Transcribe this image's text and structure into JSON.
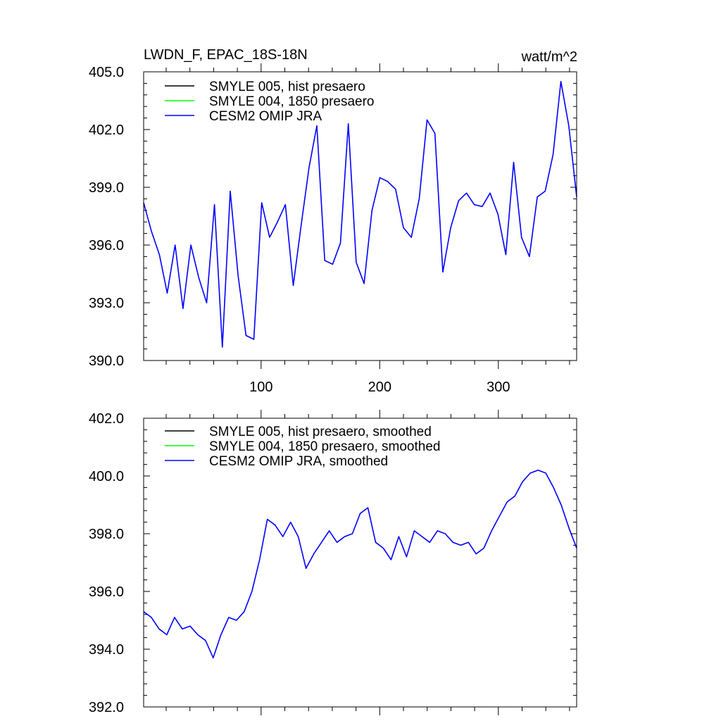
{
  "chart_data": [
    {
      "type": "line",
      "title": "LWDN_F, EPAC_18S-18N",
      "units": "watt/m^2",
      "xlim": [
        1,
        366
      ],
      "ylim": [
        390.0,
        405.0
      ],
      "x_ticks": [
        100,
        200,
        300
      ],
      "x_tick_labels": [
        "100",
        "200",
        "300"
      ],
      "y_ticks": [
        390.0,
        393.0,
        396.0,
        399.0,
        402.0,
        405.0
      ],
      "y_tick_labels": [
        "390.0",
        "393.0",
        "396.0",
        "399.0",
        "402.0",
        "405.0"
      ],
      "legend_position": "top-left",
      "series": [
        {
          "name": "SMYLE 005, hist presaero",
          "color": "#000000",
          "values": []
        },
        {
          "name": "SMYLE 004, 1850 presaero",
          "color": "#00ff00",
          "values": []
        },
        {
          "name": "CESM2 OMIP JRA",
          "color": "#0000ff",
          "values": [
            398.2,
            396.7,
            395.5,
            393.5,
            396.0,
            392.7,
            396.0,
            394.3,
            393.0,
            398.1,
            390.7,
            398.8,
            394.4,
            391.3,
            391.1,
            398.2,
            396.4,
            397.2,
            398.1,
            393.9,
            397.0,
            400.0,
            402.2,
            395.2,
            395.0,
            396.1,
            402.3,
            395.1,
            394.0,
            397.8,
            399.5,
            399.3,
            398.9,
            396.9,
            396.4,
            398.4,
            402.5,
            401.8,
            394.6,
            396.9,
            398.3,
            398.7,
            398.1,
            398.0,
            398.7,
            397.6,
            395.5,
            400.3,
            396.4,
            395.4,
            398.5,
            398.8,
            400.7,
            404.5,
            402.2,
            398.5
          ]
        }
      ]
    },
    {
      "type": "line",
      "xlim": [
        1,
        366
      ],
      "ylim": [
        392.0,
        402.0
      ],
      "y_ticks": [
        392.0,
        394.0,
        396.0,
        398.0,
        400.0,
        402.0
      ],
      "y_tick_labels": [
        "392.0",
        "394.0",
        "396.0",
        "398.0",
        "400.0",
        "402.0"
      ],
      "legend_position": "top-left",
      "series": [
        {
          "name": "SMYLE 005, hist presaero, smoothed",
          "color": "#000000",
          "values": []
        },
        {
          "name": "SMYLE 004, 1850 presaero, smoothed",
          "color": "#00ff00",
          "values": []
        },
        {
          "name": "CESM2 OMIP JRA, smoothed",
          "color": "#0000ff",
          "values": [
            395.3,
            395.1,
            394.7,
            394.5,
            395.1,
            394.7,
            394.8,
            394.5,
            394.3,
            393.7,
            394.5,
            395.1,
            395.0,
            395.3,
            396.0,
            397.1,
            398.5,
            398.3,
            397.9,
            398.4,
            397.9,
            396.8,
            397.3,
            397.7,
            398.1,
            397.7,
            397.9,
            398.0,
            398.7,
            398.9,
            397.7,
            397.5,
            397.1,
            397.9,
            397.2,
            398.1,
            397.9,
            397.7,
            398.1,
            398.0,
            397.7,
            397.6,
            397.7,
            397.3,
            397.5,
            398.1,
            398.6,
            399.1,
            399.3,
            399.8,
            400.1,
            400.2,
            400.1,
            399.6,
            399.0,
            398.2,
            397.5
          ]
        }
      ]
    }
  ]
}
